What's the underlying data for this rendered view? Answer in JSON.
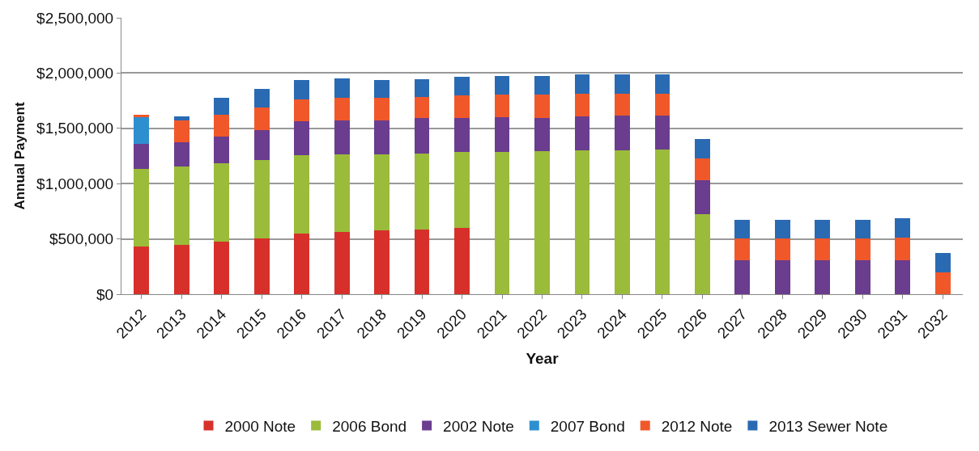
{
  "chart_data": {
    "type": "bar",
    "stacked": true,
    "xlabel": "Year",
    "ylabel": "Annual Payment",
    "categories": [
      "2012",
      "2013",
      "2014",
      "2015",
      "2016",
      "2017",
      "2018",
      "2019",
      "2020",
      "2021",
      "2022",
      "2023",
      "2024",
      "2025",
      "2026",
      "2027",
      "2028",
      "2029",
      "2030",
      "2031",
      "2032"
    ],
    "series": [
      {
        "name": "2000 Note",
        "color": "#d7302a",
        "values": [
          430000,
          445000,
          475000,
          505000,
          550000,
          565000,
          575000,
          585000,
          600000,
          null,
          null,
          null,
          null,
          null,
          null,
          null,
          null,
          null,
          null,
          null,
          null
        ]
      },
      {
        "name": "2006 Bond",
        "color": "#9bbb3b",
        "values": [
          705000,
          710000,
          710000,
          710000,
          705000,
          700000,
          690000,
          685000,
          685000,
          1290000,
          1295000,
          1300000,
          1300000,
          1305000,
          725000,
          null,
          null,
          null,
          null,
          null,
          null
        ]
      },
      {
        "name": "2002 Note",
        "color": "#6a3d8f",
        "values": [
          225000,
          220000,
          240000,
          270000,
          310000,
          310000,
          310000,
          325000,
          310000,
          310000,
          300000,
          310000,
          315000,
          310000,
          305000,
          310000,
          310000,
          310000,
          310000,
          310000,
          null
        ]
      },
      {
        "name": "2007 Bond",
        "color": "#2e8fd0",
        "values": [
          240000,
          null,
          null,
          null,
          null,
          null,
          null,
          null,
          null,
          null,
          null,
          null,
          null,
          null,
          null,
          null,
          null,
          null,
          null,
          null,
          null
        ]
      },
      {
        "name": "2012 Note",
        "color": "#f0582a",
        "values": [
          20000,
          200000,
          200000,
          200000,
          200000,
          205000,
          200000,
          190000,
          200000,
          205000,
          210000,
          200000,
          195000,
          195000,
          200000,
          195000,
          195000,
          195000,
          195000,
          205000,
          195000
        ]
      },
      {
        "name": "2013 Sewer Note",
        "color": "#2a6ab3",
        "values": [
          null,
          35000,
          150000,
          175000,
          175000,
          170000,
          165000,
          160000,
          175000,
          170000,
          170000,
          175000,
          175000,
          180000,
          175000,
          170000,
          170000,
          170000,
          170000,
          170000,
          175000
        ]
      }
    ],
    "ylim": [
      0,
      2500000
    ],
    "yticks": [
      {
        "value": 0,
        "label": "$0"
      },
      {
        "value": 500000,
        "label": "$500,000"
      },
      {
        "value": 1000000,
        "label": "$1,000,000"
      },
      {
        "value": 1500000,
        "label": "$1,500,000"
      },
      {
        "value": 2000000,
        "label": "$2,000,000"
      },
      {
        "value": 2500000,
        "label": "$2,500,000"
      }
    ],
    "grid": "y",
    "legend": "bottom"
  }
}
